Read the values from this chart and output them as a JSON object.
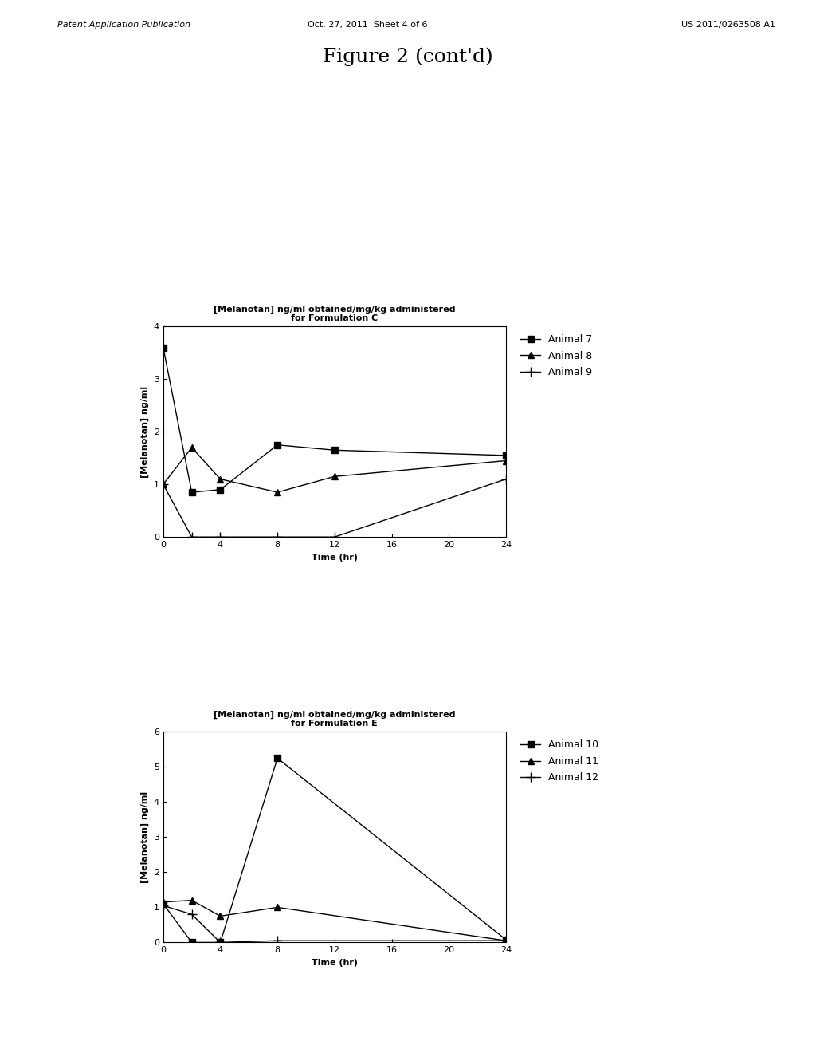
{
  "page_title": "Figure 2 (cont'd)",
  "header_left": "Patent Application Publication",
  "header_center": "Oct. 27, 2011  Sheet 4 of 6",
  "header_right": "US 2011/0263508 A1",
  "plot1": {
    "title_line1": "[Melanotan] ng/ml obtained/mg/kg administered",
    "title_line2": "for Formulation C",
    "xlabel": "Time (hr)",
    "ylabel": "[Melanotan] ng/ml",
    "ylim": [
      0,
      4
    ],
    "yticks": [
      0,
      1,
      2,
      3,
      4
    ],
    "xticks": [
      0,
      4,
      8,
      12,
      16,
      20,
      24
    ],
    "series": [
      {
        "label": "Animal 7",
        "x": [
          0,
          2,
          4,
          8,
          12,
          24
        ],
        "y": [
          3.6,
          0.85,
          0.9,
          1.75,
          1.65,
          1.55
        ],
        "marker": "s",
        "color": "#000000",
        "linestyle": "-"
      },
      {
        "label": "Animal 8",
        "x": [
          0,
          2,
          4,
          8,
          12,
          24
        ],
        "y": [
          1.0,
          1.7,
          1.1,
          0.85,
          1.15,
          1.45
        ],
        "marker": "^",
        "color": "#000000",
        "linestyle": "-"
      },
      {
        "label": "Animal 9",
        "x": [
          0,
          2,
          4,
          8,
          12,
          24
        ],
        "y": [
          1.0,
          0.0,
          0.0,
          0.0,
          0.0,
          1.1
        ],
        "marker": "+",
        "color": "#000000",
        "linestyle": "-"
      }
    ]
  },
  "plot2": {
    "title_line1": "[Melanotan] ng/ml obtained/mg/kg administered",
    "title_line2": "for Formulation E",
    "xlabel": "Time (hr)",
    "ylabel": "[Melanotan] ng/ml",
    "ylim": [
      0,
      6
    ],
    "yticks": [
      0,
      1,
      2,
      3,
      4,
      5,
      6
    ],
    "xticks": [
      0,
      4,
      8,
      12,
      16,
      20,
      24
    ],
    "series": [
      {
        "label": "Animal 10",
        "x": [
          0,
          2,
          4,
          8,
          24
        ],
        "y": [
          1.1,
          0.0,
          0.0,
          5.25,
          0.08
        ],
        "marker": "s",
        "color": "#000000",
        "linestyle": "-"
      },
      {
        "label": "Animal 11",
        "x": [
          0,
          2,
          4,
          8,
          24
        ],
        "y": [
          1.15,
          1.2,
          0.75,
          1.0,
          0.05
        ],
        "marker": "^",
        "color": "#000000",
        "linestyle": "-"
      },
      {
        "label": "Animal 12",
        "x": [
          0,
          2,
          4,
          8,
          24
        ],
        "y": [
          1.05,
          0.8,
          0.0,
          0.05,
          0.05
        ],
        "marker": "+",
        "color": "#000000",
        "linestyle": "-"
      }
    ]
  },
  "background_color": "#ffffff",
  "text_color": "#000000",
  "page_title_fontsize": 18,
  "header_fontsize": 8,
  "axis_label_fontsize": 8,
  "tick_fontsize": 8,
  "legend_fontsize": 9,
  "chart_title_fontsize": 8
}
